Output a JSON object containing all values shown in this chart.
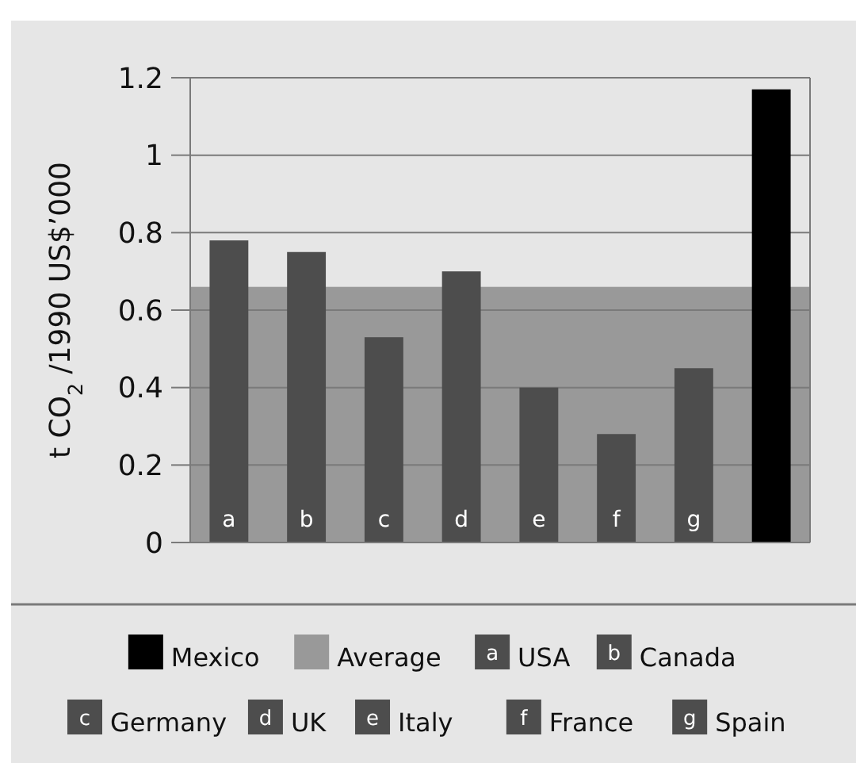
{
  "chart_data": {
    "type": "bar",
    "ylabel": "t CO$_{2}$ /1990 US$’000",
    "categories": [
      "a",
      "b",
      "c",
      "d",
      "e",
      "f",
      "g",
      null
    ],
    "stacked": true,
    "series": [
      {
        "name": "Mexico",
        "color": "#000000",
        "values": [
          null,
          null,
          null,
          null,
          null,
          null,
          null,
          1.17
        ]
      },
      {
        "name": "USA",
        "color": "#4d4d4d",
        "values": [
          0.78,
          null,
          null,
          null,
          null,
          null,
          null,
          null
        ]
      },
      {
        "name": "Canada",
        "color": "#4d4d4d",
        "values": [
          null,
          0.75,
          null,
          null,
          null,
          null,
          null,
          null
        ]
      },
      {
        "name": "Germany",
        "color": "#4d4d4d",
        "values": [
          null,
          null,
          0.53,
          null,
          null,
          null,
          null,
          null
        ]
      },
      {
        "name": "UK",
        "color": "#4d4d4d",
        "values": [
          null,
          null,
          null,
          0.7,
          null,
          null,
          null,
          null
        ]
      },
      {
        "name": "Italy",
        "color": "#4d4d4d",
        "values": [
          null,
          null,
          null,
          null,
          0.4,
          null,
          null,
          null
        ]
      },
      {
        "name": "France",
        "color": "#4d4d4d",
        "values": [
          null,
          null,
          null,
          null,
          null,
          0.28,
          null,
          null
        ]
      },
      {
        "name": "Spain",
        "color": "#4d4d4d",
        "values": [
          null,
          null,
          null,
          null,
          null,
          null,
          0.45,
          null
        ]
      }
    ],
    "bands": [
      {
        "axis": "y",
        "from": 0,
        "to": 0.66,
        "label": "Average",
        "color": "#999999"
      }
    ],
    "ylim": [
      0,
      1.2
    ],
    "yticks": [
      0,
      0.2,
      0.4,
      0.6,
      0.8,
      1,
      1.2
    ],
    "grid": "y",
    "legend": "bottom"
  }
}
